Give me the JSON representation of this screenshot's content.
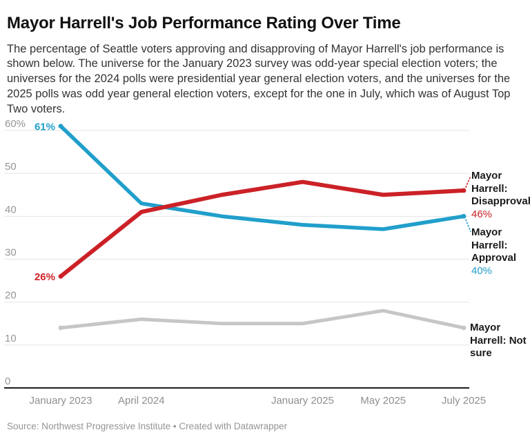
{
  "header": {
    "title": "Mayor Harrell's Job Performance Rating Over Time",
    "description": "The percentage of Seattle voters approving and disapproving of Mayor Harrell's job performance is shown below. The universe for the January 2023 survey was odd-year special election voters; the universes for the 2024 polls were presidential year general election voters, and the universes for the 2025 polls was odd year general election voters, except for the one in July, which was of August Top Two voters."
  },
  "chart_data": {
    "type": "line",
    "x": [
      "January 2023",
      "April 2024",
      "",
      "January 2025",
      "May 2025",
      "July 2025"
    ],
    "x_tick_labels": [
      {
        "label": "January 2023",
        "point": 0
      },
      {
        "label": "April 2024",
        "point": 1
      },
      {
        "label": "January 2025",
        "point": 3
      },
      {
        "label": "May 2025",
        "point": 4
      },
      {
        "label": "July 2025",
        "point": 5
      }
    ],
    "y_ticks": [
      {
        "value": 0,
        "label": "0"
      },
      {
        "value": 10,
        "label": "10"
      },
      {
        "value": 20,
        "label": "20"
      },
      {
        "value": 30,
        "label": "30"
      },
      {
        "value": 40,
        "label": "40"
      },
      {
        "value": 50,
        "label": "50"
      },
      {
        "value": 60,
        "label": "60%"
      }
    ],
    "ylim": [
      0,
      60
    ],
    "grid": "horizontal",
    "legend_position": "right-edge-direct-labels",
    "series": [
      {
        "name": "Mayor Harrell: Disapproval",
        "color": "#cb2127",
        "values": [
          26,
          41,
          45,
          48,
          45,
          46
        ],
        "start_label": "26%",
        "end_label": "46%"
      },
      {
        "name": "Mayor Harrell: Approval",
        "color": "#219fcb",
        "values": [
          61,
          43,
          40,
          38,
          37,
          40
        ],
        "start_label": "61%",
        "end_label": "40%"
      },
      {
        "name": "Mayor Harrell: Not sure",
        "color": "#c6c6c6",
        "values": [
          14,
          16,
          15,
          15,
          18,
          14
        ],
        "start_label": "",
        "end_label": ""
      }
    ]
  },
  "footer": {
    "source": "Source: Northwest Progressive Institute • Created with Datawrapper"
  }
}
